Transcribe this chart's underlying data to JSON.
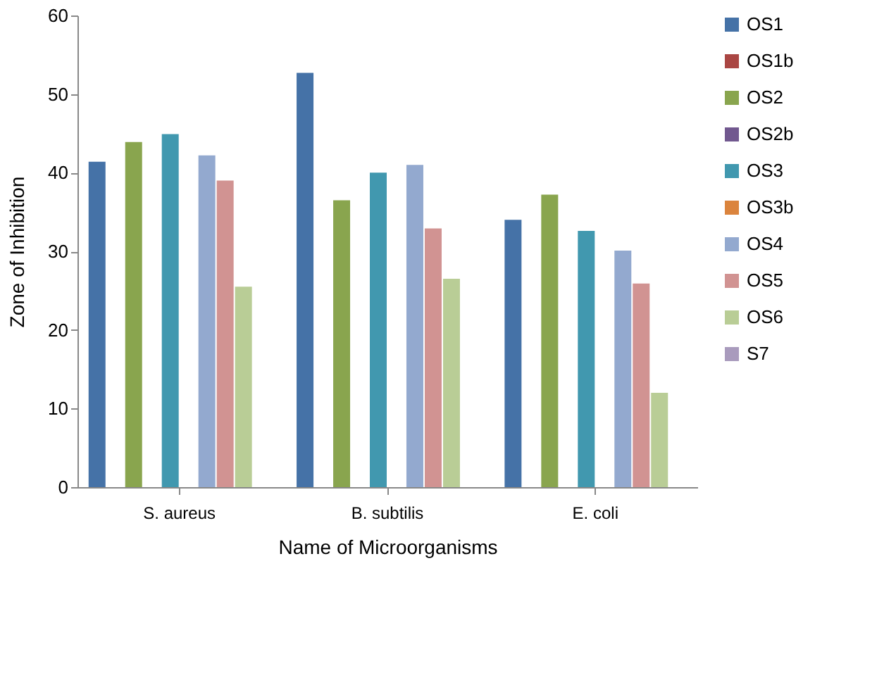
{
  "chart_data": {
    "type": "bar",
    "xlabel": "Name of Microorganisms",
    "ylabel": "Zone of Inhibition",
    "categories": [
      "S. aureus",
      "B. subtilis",
      "E. coli"
    ],
    "series": [
      {
        "name": "OS1",
        "color": "#4572a7",
        "values": [
          41.4,
          52.7,
          34.0
        ]
      },
      {
        "name": "OS1b",
        "color": "#aa4643",
        "values": [
          null,
          null,
          null
        ]
      },
      {
        "name": "OS2",
        "color": "#89a54e",
        "values": [
          43.9,
          36.5,
          37.2
        ]
      },
      {
        "name": "OS2b",
        "color": "#71588f",
        "values": [
          null,
          null,
          null
        ]
      },
      {
        "name": "OS3",
        "color": "#4198af",
        "values": [
          44.9,
          40.0,
          32.6
        ]
      },
      {
        "name": "OS3b",
        "color": "#db843d",
        "values": [
          null,
          null,
          null
        ]
      },
      {
        "name": "OS4",
        "color": "#93a9cf",
        "values": [
          42.2,
          41.0,
          30.1
        ]
      },
      {
        "name": "OS5",
        "color": "#d19392",
        "values": [
          39.0,
          32.9,
          25.9
        ]
      },
      {
        "name": "OS6",
        "color": "#b9cd96",
        "values": [
          25.5,
          26.5,
          12.0
        ]
      },
      {
        "name": "S7",
        "color": "#a99bbd",
        "values": [
          null,
          null,
          null
        ]
      }
    ],
    "ylim": [
      0,
      60
    ],
    "yticks": [
      0,
      10,
      20,
      30,
      40,
      50,
      60
    ],
    "grid": false,
    "legend": "right"
  }
}
